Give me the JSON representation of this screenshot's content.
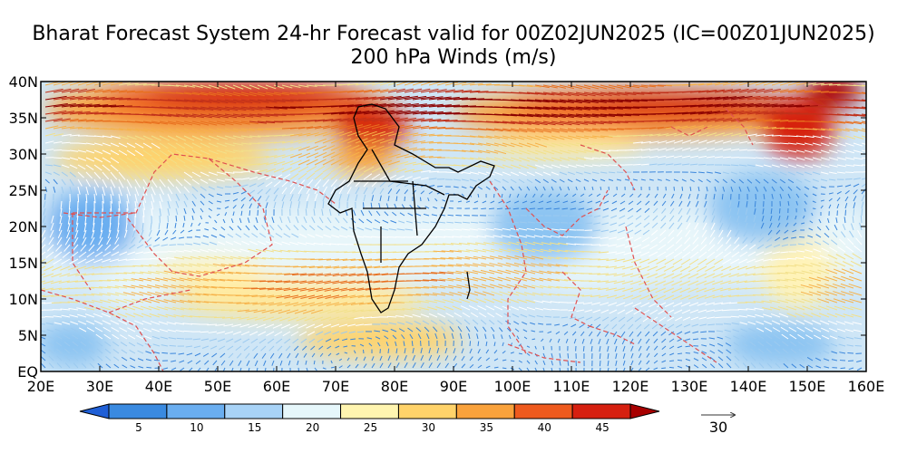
{
  "title_line1": "Bharat Forecast System 24-hr Forecast valid for 00Z02JUN2025 (IC=00Z01JUN2025)",
  "title_line2": "200 hPa Winds (m/s)",
  "map": {
    "lon_range": [
      20,
      160
    ],
    "lat_range": [
      0,
      40
    ],
    "x_ticks": [
      "20E",
      "30E",
      "40E",
      "50E",
      "60E",
      "70E",
      "80E",
      "90E",
      "100E",
      "110E",
      "120E",
      "130E",
      "140E",
      "150E",
      "160E"
    ],
    "y_ticks": [
      "EQ",
      "5N",
      "10N",
      "15N",
      "20N",
      "25N",
      "30N",
      "35N",
      "40N"
    ],
    "field": "wind speed (shaded) with wind vectors",
    "jet_streams": [
      {
        "description": "subtropical westerly jet over Middle East to Tibet",
        "max_speed_class": "45+"
      },
      {
        "description": "westerly jet over East Asia / NW Pacific",
        "max_speed_class": "45+"
      },
      {
        "description": "tropical easterly flow over southern Arabian Sea / Indian Ocean",
        "max_speed_class": "30-35"
      }
    ]
  },
  "colorbar": {
    "labels": [
      "5",
      "10",
      "15",
      "20",
      "25",
      "30",
      "35",
      "40",
      "45"
    ],
    "colors": [
      "#1f5fd6",
      "#3a8ae0",
      "#6aaef0",
      "#a8d3f7",
      "#e6f7fb",
      "#fff5b0",
      "#ffd36a",
      "#f9a23c",
      "#ee5a1e",
      "#d62010",
      "#a80000"
    ]
  },
  "reference_vector": {
    "label": "30"
  },
  "colors": {
    "coastline": "#e05050",
    "india_boundary": "#000000",
    "ocean_background": "#d8ecf8"
  }
}
